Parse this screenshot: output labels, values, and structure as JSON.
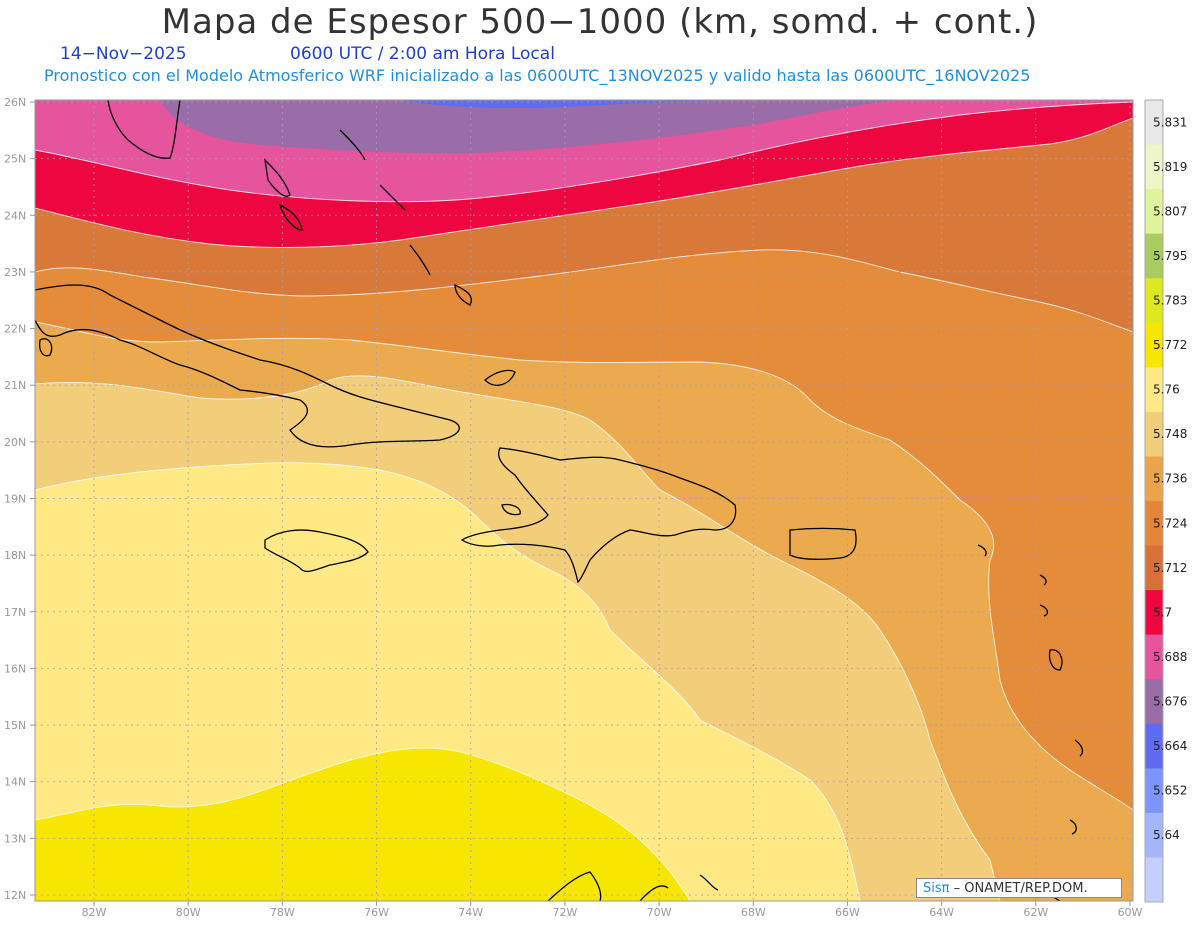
{
  "title": "Mapa de Espesor 500−1000 (km, somd. + cont.)",
  "date": "14−Nov−2025",
  "time": "0600 UTC / 2:00 am Hora Local",
  "model_line": "Pronostico con el Modelo Atmosferico WRF inicializado a las 0600UTC_13NOV2025 y valido hasta las  0600UTC_16NOV2025",
  "credit": {
    "brand": "Sisπ",
    "text": "– ONAMET/REP.DOM."
  },
  "lat_labels": [
    "26N",
    "25N",
    "24N",
    "23N",
    "22N",
    "21N",
    "20N",
    "19N",
    "18N",
    "17N",
    "16N",
    "15N",
    "14N",
    "13N",
    "12N"
  ],
  "lon_labels": [
    "82W",
    "80W",
    "78W",
    "76W",
    "74W",
    "72W",
    "70W",
    "68W",
    "66W",
    "64W",
    "62W",
    "60W"
  ],
  "colorbar": {
    "labels": [
      "5.831",
      "5.819",
      "5.807",
      "5.795",
      "5.783",
      "5.772",
      "5.76",
      "5.748",
      "5.736",
      "5.724",
      "5.712",
      "5.7",
      "5.688",
      "5.676",
      "5.664",
      "5.652",
      "5.64"
    ],
    "colors": [
      "#e8e8e8",
      "#eef6c8",
      "#dff39a",
      "#a8cc60",
      "#dde81e",
      "#f6e600",
      "#ffe985",
      "#f2cd7a",
      "#eca44a",
      "#e4853a",
      "#d8703a",
      "#ee0640",
      "#e6549e",
      "#9a6ca8",
      "#5f6bf0",
      "#7d95fa",
      "#a3b6fc",
      "#c3cffd"
    ]
  },
  "fill_colors": {
    "blue": "#5f6bf0",
    "purple": "#9a6ca8",
    "pink": "#e6549e",
    "red": "#ee0640",
    "dark_orange": "#d8793a",
    "orange": "#e58c3a",
    "light_orange": "#ebaa4e",
    "tan": "#f2cd7a",
    "light_yellow": "#ffe985",
    "yellow": "#f6e600"
  }
}
